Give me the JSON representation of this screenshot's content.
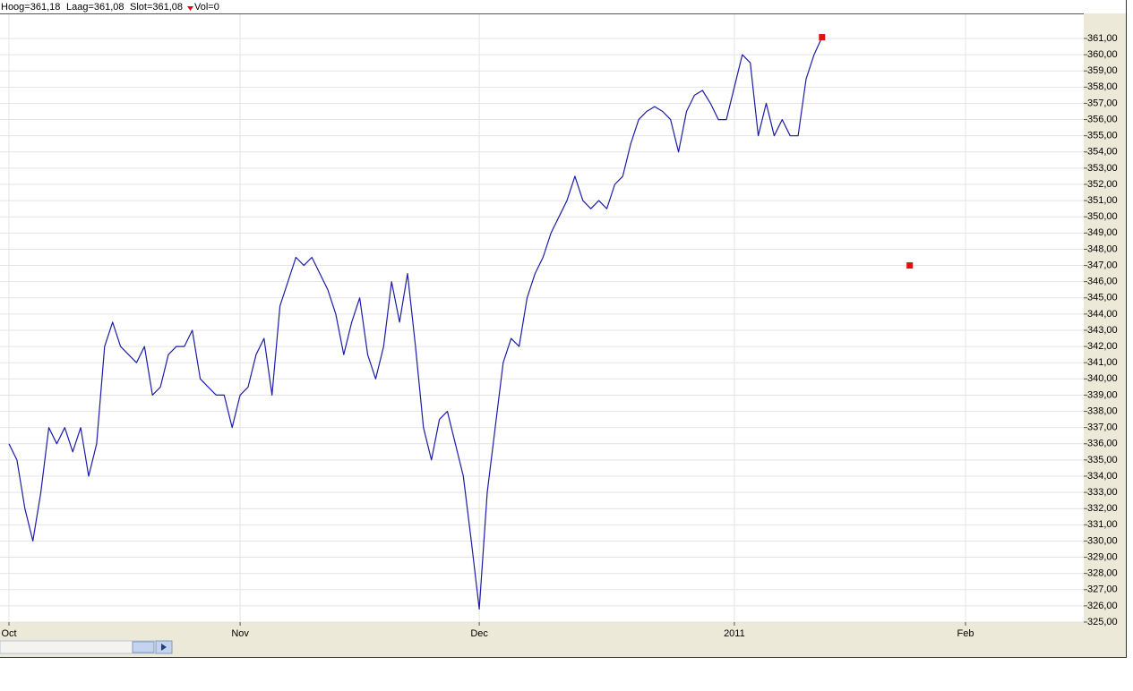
{
  "header": {
    "items": [
      "Hoog=361,18",
      "Laag=361,08",
      "Slot=361,08",
      "Vol=0"
    ]
  },
  "chart_data": {
    "type": "line",
    "grid": true,
    "categories": [
      "Oct",
      null,
      null,
      null,
      null,
      null,
      null,
      null,
      null,
      null,
      null,
      null,
      null,
      null,
      null,
      null,
      null,
      null,
      null,
      null,
      null,
      null,
      null,
      null,
      null,
      null,
      null,
      null,
      null,
      "Nov",
      null,
      null,
      null,
      null,
      null,
      null,
      null,
      null,
      null,
      null,
      null,
      null,
      null,
      null,
      null,
      null,
      null,
      null,
      null,
      null,
      null,
      null,
      null,
      null,
      null,
      null,
      null,
      null,
      null,
      "Dec",
      null,
      null,
      null,
      null,
      null,
      null,
      null,
      null,
      null,
      null,
      null,
      null,
      null,
      null,
      null,
      null,
      null,
      null,
      null,
      null,
      null,
      null,
      null,
      null,
      null,
      null,
      null,
      null,
      null,
      null,
      null,
      "2011",
      null,
      null,
      null,
      null,
      null,
      null,
      null,
      null,
      null,
      null,
      null,
      null,
      null,
      null,
      null,
      null,
      null,
      null,
      null,
      null,
      null,
      null,
      null,
      null,
      null,
      null,
      null,
      null,
      "Feb",
      null,
      null,
      null,
      null,
      null,
      null,
      null,
      null,
      null,
      null,
      null,
      null,
      null,
      null,
      null
    ],
    "series": [
      {
        "color": "#1c1ca8",
        "values": [
          336,
          335,
          332,
          330,
          333,
          337,
          336,
          337,
          335.5,
          337,
          334,
          336,
          342,
          343.5,
          342,
          341.5,
          341,
          342,
          339,
          339.5,
          341.5,
          342,
          342,
          343,
          340,
          339.5,
          339,
          339,
          337,
          339,
          339.5,
          341.5,
          342.5,
          339,
          344.5,
          346,
          347.5,
          347,
          347.5,
          346.5,
          345.5,
          344,
          341.5,
          343.5,
          345,
          341.5,
          340,
          342,
          346,
          343.5,
          346.5,
          342,
          337,
          335,
          337.5,
          338,
          336,
          334,
          330,
          325.8,
          333,
          337,
          341,
          342.5,
          342,
          345,
          346.5,
          347.5,
          349,
          350,
          351,
          352.5,
          351,
          350.5,
          351,
          350.5,
          352,
          352.5,
          354.5,
          356,
          356.5,
          356.8,
          356.5,
          356,
          354,
          356.5,
          357.5,
          357.8,
          357,
          356,
          356,
          358,
          360,
          359.5,
          355,
          357,
          355,
          356,
          355,
          355,
          358.5,
          360,
          361.08,
          null,
          null,
          null,
          null,
          null,
          null,
          null,
          null,
          null,
          null,
          null,
          null,
          null,
          null,
          null,
          null,
          null,
          null,
          null,
          null,
          null,
          null,
          null,
          null,
          null,
          null,
          null,
          null,
          null,
          null,
          null,
          null,
          null
        ]
      },
      {
        "color": "#e01010",
        "values": [
          null,
          null,
          null,
          null,
          null,
          null,
          null,
          null,
          null,
          null,
          null,
          null,
          null,
          null,
          null,
          null,
          null,
          null,
          null,
          null,
          null,
          null,
          null,
          null,
          null,
          null,
          null,
          null,
          null,
          null,
          null,
          null,
          null,
          null,
          null,
          null,
          null,
          null,
          null,
          null,
          null,
          null,
          null,
          null,
          null,
          null,
          null,
          null,
          null,
          null,
          null,
          null,
          null,
          null,
          null,
          null,
          null,
          null,
          null,
          null,
          null,
          null,
          null,
          null,
          null,
          null,
          null,
          null,
          null,
          null,
          null,
          null,
          null,
          null,
          null,
          null,
          null,
          null,
          null,
          null,
          null,
          null,
          null,
          null,
          null,
          null,
          null,
          null,
          null,
          null,
          null,
          null,
          null,
          null,
          null,
          null,
          null,
          null,
          null,
          null,
          null,
          null,
          361.08,
          null,
          null,
          null,
          null,
          null,
          null,
          null,
          null,
          null,
          null,
          347,
          null,
          null,
          null,
          null,
          null,
          null,
          null,
          null,
          null,
          null,
          null,
          null,
          null,
          null,
          null,
          null,
          null,
          null,
          null,
          null,
          null,
          null
        ]
      }
    ],
    "ylim": [
      325,
      361
    ],
    "yticks": [
      {
        "value": 325,
        "label": "325,00"
      },
      {
        "value": 326,
        "label": "326,00"
      },
      {
        "value": 327,
        "label": "327,00"
      },
      {
        "value": 328,
        "label": "328,00"
      },
      {
        "value": 329,
        "label": "329,00"
      },
      {
        "value": 330,
        "label": "330,00"
      },
      {
        "value": 331,
        "label": "331,00"
      },
      {
        "value": 332,
        "label": "332,00"
      },
      {
        "value": 333,
        "label": "333,00"
      },
      {
        "value": 334,
        "label": "334,00"
      },
      {
        "value": 335,
        "label": "335,00"
      },
      {
        "value": 336,
        "label": "336,00"
      },
      {
        "value": 337,
        "label": "337,00"
      },
      {
        "value": 338,
        "label": "338,00"
      },
      {
        "value": 339,
        "label": "339,00"
      },
      {
        "value": 340,
        "label": "340,00"
      },
      {
        "value": 341,
        "label": "341,00"
      },
      {
        "value": 342,
        "label": "342,00"
      },
      {
        "value": 343,
        "label": "343,00"
      },
      {
        "value": 344,
        "label": "344,00"
      },
      {
        "value": 345,
        "label": "345,00"
      },
      {
        "value": 346,
        "label": "346,00"
      },
      {
        "value": 347,
        "label": "347,00"
      },
      {
        "value": 348,
        "label": "348,00"
      },
      {
        "value": 349,
        "label": "349,00"
      },
      {
        "value": 350,
        "label": "350,00"
      },
      {
        "value": 351,
        "label": "351,00"
      },
      {
        "value": 352,
        "label": "352,00"
      },
      {
        "value": 353,
        "label": "353,00"
      },
      {
        "value": 354,
        "label": "354,00"
      },
      {
        "value": 355,
        "label": "355,00"
      },
      {
        "value": 356,
        "label": "356,00"
      },
      {
        "value": 357,
        "label": "357,00"
      },
      {
        "value": 358,
        "label": "358,00"
      },
      {
        "value": 359,
        "label": "359,00"
      },
      {
        "value": 360,
        "label": "360,00"
      },
      {
        "value": 361,
        "label": "361,00"
      }
    ]
  }
}
